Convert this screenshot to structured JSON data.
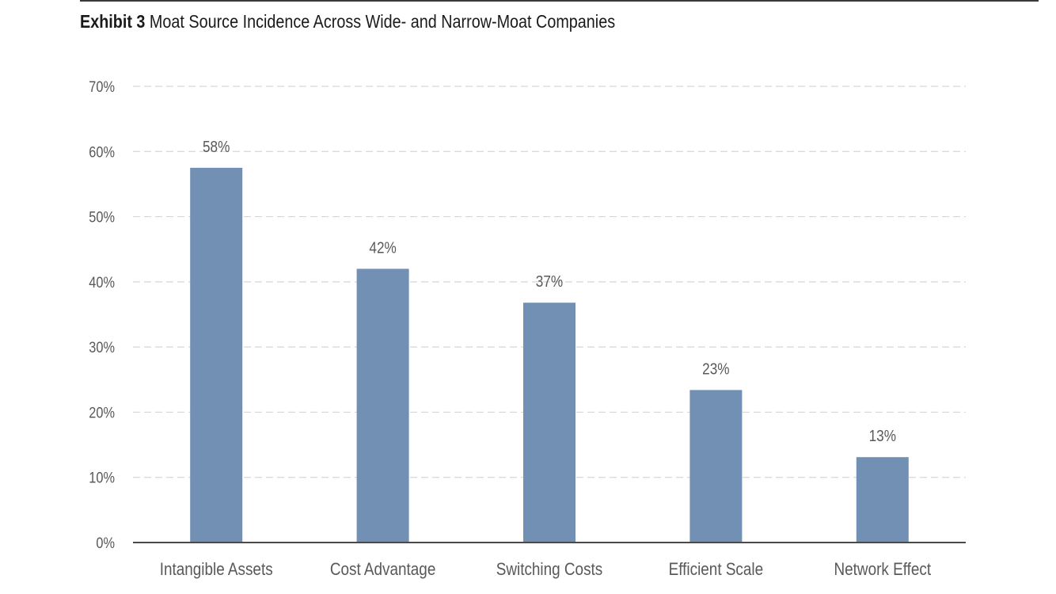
{
  "header": {
    "exhibit_label": "Exhibit 3",
    "title": "Moat Source Incidence Across Wide- and Narrow-Moat Companies"
  },
  "chart_data": {
    "type": "bar",
    "title": "Exhibit 3 Moat Source Incidence Across Wide- and Narrow-Moat Companies",
    "xlabel": "",
    "ylabel": "",
    "categories": [
      "Intangible Assets",
      "Cost Advantage",
      "Switching Costs",
      "Efficient Scale",
      "Network Effect"
    ],
    "values": [
      0.575,
      0.42,
      0.368,
      0.234,
      0.131
    ],
    "data_labels": [
      "58%",
      "42%",
      "37%",
      "23%",
      "13%"
    ],
    "ylim": [
      0,
      0.7
    ],
    "yticks": [
      0,
      0.1,
      0.2,
      0.3,
      0.4,
      0.5,
      0.6,
      0.7
    ],
    "ytick_labels": [
      "0%",
      "10%",
      "20%",
      "30%",
      "40%",
      "50%",
      "60%",
      "70%"
    ],
    "grid": true,
    "grid_style": "dashed",
    "bar_color": "#7290b3",
    "axis_color": "#4a4a4a",
    "grid_color": "#d6d6d6",
    "label_color": "#595959"
  }
}
